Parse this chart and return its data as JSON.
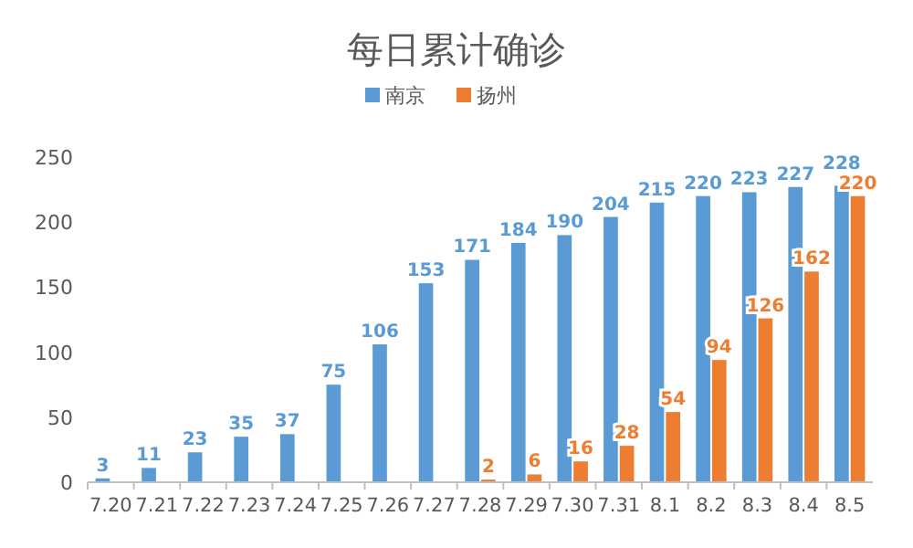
{
  "chart_data": {
    "type": "bar",
    "title": "每日累计确诊",
    "categories": [
      "7.20",
      "7.21",
      "7.22",
      "7.23",
      "7.24",
      "7.25",
      "7.26",
      "7.27",
      "7.28",
      "7.29",
      "7.30",
      "7.31",
      "8.1",
      "8.2",
      "8.3",
      "8.4",
      "8.5"
    ],
    "series": [
      {
        "name": "南京",
        "color": "#5b9bd5",
        "values": [
          3,
          11,
          23,
          35,
          37,
          75,
          106,
          153,
          171,
          184,
          190,
          204,
          215,
          220,
          223,
          227,
          228
        ]
      },
      {
        "name": "扬州",
        "color": "#ed7d31",
        "values": [
          null,
          null,
          null,
          null,
          null,
          null,
          null,
          null,
          2,
          6,
          16,
          28,
          54,
          94,
          126,
          162,
          220
        ]
      }
    ],
    "ylim": [
      0,
      250
    ],
    "yticks": [
      0,
      50,
      100,
      150,
      200,
      250
    ],
    "data_labels": true,
    "legend": "top",
    "grid": false
  }
}
